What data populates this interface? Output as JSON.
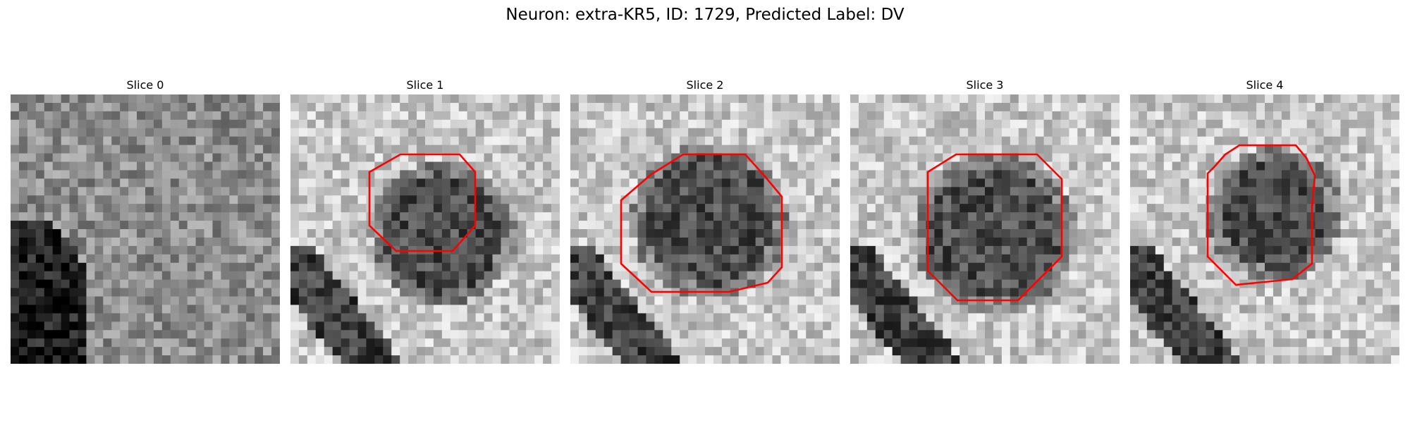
{
  "figure": {
    "title": "Neuron: extra-KR5, ID: 1729, Predicted Label: DV"
  },
  "panels": [
    {
      "title": "Slice 0",
      "has_contour": false
    },
    {
      "title": "Slice 1",
      "has_contour": true
    },
    {
      "title": "Slice 2",
      "has_contour": true
    },
    {
      "title": "Slice 3",
      "has_contour": true
    },
    {
      "title": "Slice 4",
      "has_contour": true
    }
  ],
  "colors": {
    "contour": "#ff0000",
    "background": "#ffffff"
  }
}
